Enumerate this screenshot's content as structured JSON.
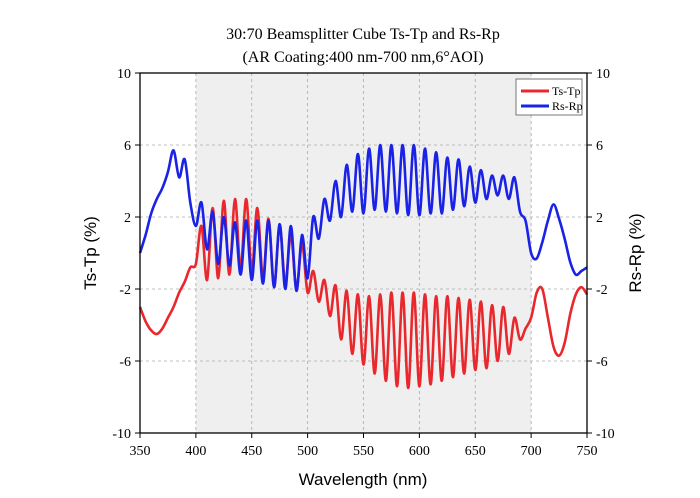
{
  "chart_data": {
    "type": "line",
    "title": "30:70 Beamsplitter Cube Ts-Tp and Rs-Rp",
    "subtitle": "(AR Coating:400 nm-700 nm,6°AOI)",
    "xlabel": "Wavelength (nm)",
    "ylabel_left": "Ts-Tp (%)",
    "ylabel_right": "Rs-Rp (%)",
    "xlim": [
      350,
      750
    ],
    "ylim": [
      -10,
      10
    ],
    "x_ticks": [
      "350",
      "400",
      "450",
      "500",
      "550",
      "600",
      "650",
      "700",
      "750"
    ],
    "y_ticks": [
      "-10",
      "-6",
      "-2",
      "2",
      "6",
      "10"
    ],
    "shaded_band": [
      400,
      700
    ],
    "grid": true,
    "legend_position": "top-right",
    "series": [
      {
        "name": "Ts-Tp",
        "color": "#e8282c",
        "x": [
          350,
          355,
          360,
          365,
          370,
          375,
          380,
          385,
          390,
          395,
          400,
          405,
          410,
          415,
          420,
          425,
          430,
          435,
          440,
          445,
          450,
          455,
          460,
          465,
          470,
          475,
          480,
          485,
          490,
          495,
          500,
          505,
          510,
          515,
          520,
          525,
          530,
          535,
          540,
          545,
          550,
          555,
          560,
          565,
          570,
          575,
          580,
          585,
          590,
          595,
          600,
          605,
          610,
          615,
          620,
          625,
          630,
          635,
          640,
          645,
          650,
          655,
          660,
          665,
          670,
          675,
          680,
          685,
          690,
          695,
          700,
          705,
          710,
          715,
          720,
          725,
          730,
          735,
          740,
          745,
          750
        ],
        "values": [
          -3.0,
          -3.8,
          -4.3,
          -4.5,
          -4.2,
          -3.6,
          -3.0,
          -2.2,
          -1.6,
          -0.8,
          -0.6,
          1.5,
          -1.5,
          2.5,
          -1.4,
          2.9,
          -1.2,
          3.0,
          -0.9,
          3.0,
          -1.0,
          2.5,
          -1.4,
          1.9,
          -1.8,
          1.5,
          -1.7,
          1.0,
          -2.0,
          0.5,
          -2.2,
          -1.0,
          -2.7,
          -1.5,
          -3.5,
          -1.8,
          -4.8,
          -2.1,
          -5.6,
          -2.3,
          -6.2,
          -2.4,
          -6.7,
          -2.3,
          -7.1,
          -2.2,
          -7.4,
          -2.2,
          -7.5,
          -2.2,
          -7.4,
          -2.3,
          -7.3,
          -2.4,
          -7.1,
          -2.4,
          -6.9,
          -2.5,
          -6.7,
          -2.6,
          -6.5,
          -2.7,
          -6.4,
          -2.9,
          -6.0,
          -3.0,
          -5.6,
          -3.6,
          -4.8,
          -4.2,
          -3.6,
          -2.2,
          -2.0,
          -3.6,
          -5.2,
          -5.7,
          -5.0,
          -3.4,
          -2.3,
          -1.9,
          -2.3
        ]
      },
      {
        "name": "Rs-Rp",
        "color": "#1a22e6",
        "x": [
          350,
          355,
          360,
          365,
          370,
          375,
          380,
          385,
          390,
          395,
          400,
          405,
          410,
          415,
          420,
          425,
          430,
          435,
          440,
          445,
          450,
          455,
          460,
          465,
          470,
          475,
          480,
          485,
          490,
          495,
          500,
          505,
          510,
          515,
          520,
          525,
          530,
          535,
          540,
          545,
          550,
          555,
          560,
          565,
          570,
          575,
          580,
          585,
          590,
          595,
          600,
          605,
          610,
          615,
          620,
          625,
          630,
          635,
          640,
          645,
          650,
          655,
          660,
          665,
          670,
          675,
          680,
          685,
          690,
          695,
          700,
          705,
          710,
          715,
          720,
          725,
          730,
          735,
          740,
          745,
          750
        ],
        "values": [
          0.0,
          1.0,
          2.2,
          3.0,
          3.6,
          4.5,
          5.7,
          4.2,
          5.2,
          2.8,
          1.5,
          2.8,
          0.2,
          2.3,
          -0.6,
          2.0,
          -0.7,
          1.7,
          -1.2,
          1.8,
          -1.5,
          1.8,
          -1.7,
          1.8,
          -1.9,
          1.6,
          -2.0,
          1.5,
          -2.1,
          1.0,
          -1.4,
          2.0,
          0.8,
          3.0,
          1.8,
          4.0,
          2.0,
          4.9,
          2.3,
          5.5,
          2.2,
          5.8,
          2.4,
          6.0,
          2.3,
          6.0,
          2.2,
          6.0,
          2.1,
          6.0,
          2.1,
          5.8,
          2.2,
          5.6,
          2.2,
          5.3,
          2.4,
          5.2,
          2.6,
          4.8,
          2.8,
          4.6,
          3.0,
          4.3,
          3.2,
          4.3,
          3.0,
          4.2,
          2.3,
          1.8,
          0.0,
          -0.3,
          0.6,
          1.8,
          2.7,
          1.9,
          0.8,
          -0.5,
          -1.2,
          -1.0,
          -0.8
        ]
      }
    ]
  }
}
